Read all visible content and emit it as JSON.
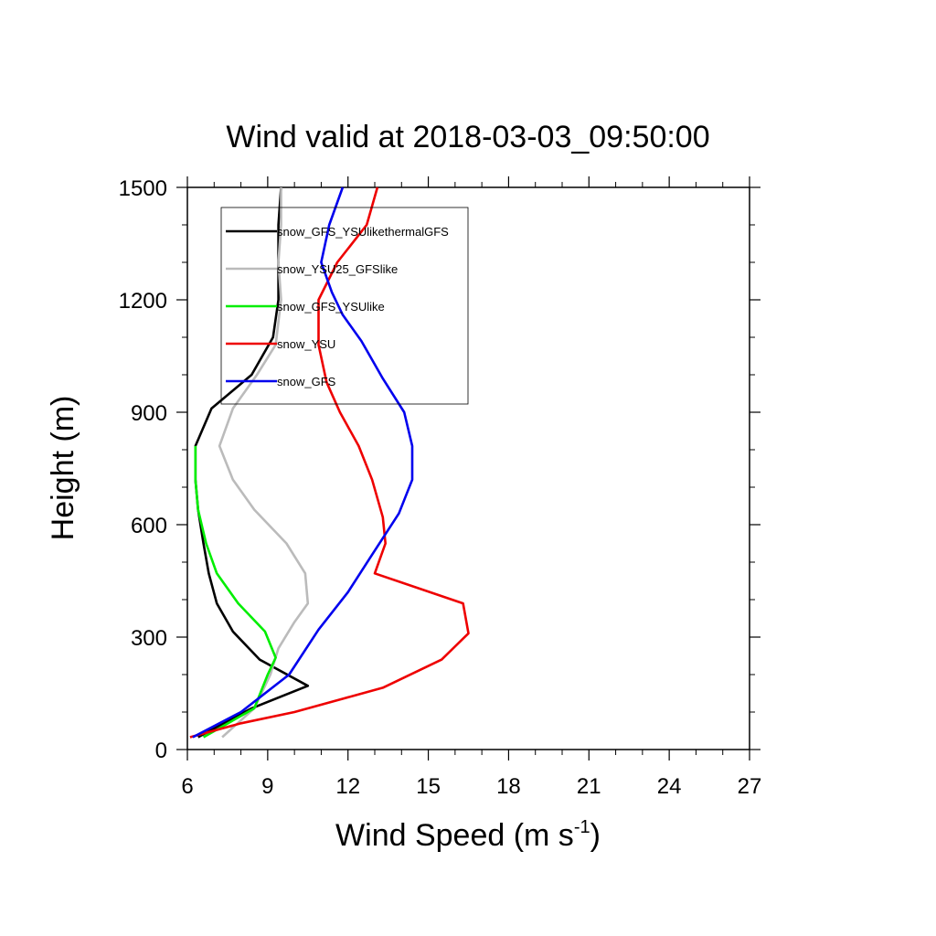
{
  "chart_data": {
    "type": "line",
    "title": "Wind valid at 2018-03-03_09:50:00",
    "xlabel": "Wind Speed (m s",
    "xlabel_sup": "-1",
    "xlabel_end": ")",
    "ylabel": "Height (m)",
    "xlim": [
      6,
      27
    ],
    "ylim": [
      0,
      1500
    ],
    "xticks": [
      6,
      9,
      12,
      15,
      18,
      21,
      24,
      27
    ],
    "yticks": [
      0,
      300,
      600,
      900,
      1200,
      1500
    ],
    "x_tick_labels": [
      "6",
      "9",
      "12",
      "15",
      "18",
      "21",
      "24",
      "27"
    ],
    "y_tick_labels": [
      "0",
      "300",
      "600",
      "900",
      "1200",
      "1500"
    ],
    "grid": false,
    "legend_position": "top-left",
    "series": [
      {
        "name": "snow_GFS_YSUlikethermalGFS",
        "color": "#000000",
        "points": [
          [
            6.4,
            33
          ],
          [
            8.4,
            110
          ],
          [
            10.5,
            170
          ],
          [
            8.7,
            240
          ],
          [
            7.7,
            315
          ],
          [
            7.1,
            390
          ],
          [
            6.8,
            470
          ],
          [
            6.6,
            550
          ],
          [
            6.4,
            640
          ],
          [
            6.3,
            720
          ],
          [
            6.3,
            810
          ],
          [
            6.9,
            910
          ],
          [
            8.4,
            1000
          ],
          [
            9.2,
            1100
          ],
          [
            9.4,
            1200
          ],
          [
            9.4,
            1300
          ],
          [
            9.4,
            1400
          ],
          [
            9.5,
            1500
          ]
        ]
      },
      {
        "name": "snow_YSU25_GFSlike",
        "color": "#bbbbbb",
        "points": [
          [
            7.3,
            33
          ],
          [
            8.5,
            110
          ],
          [
            9.1,
            200
          ],
          [
            9.4,
            270
          ],
          [
            10.0,
            340
          ],
          [
            10.5,
            390
          ],
          [
            10.4,
            470
          ],
          [
            9.7,
            550
          ],
          [
            8.5,
            640
          ],
          [
            7.7,
            720
          ],
          [
            7.2,
            810
          ],
          [
            7.7,
            910
          ],
          [
            8.6,
            1000
          ],
          [
            9.3,
            1080
          ],
          [
            9.5,
            1200
          ],
          [
            9.4,
            1300
          ],
          [
            9.5,
            1400
          ],
          [
            9.5,
            1500
          ]
        ]
      },
      {
        "name": "snow_GFS_YSUlike",
        "color": "#00ee00",
        "points": [
          [
            6.6,
            33
          ],
          [
            8.5,
            110
          ],
          [
            9.0,
            200
          ],
          [
            9.3,
            245
          ],
          [
            8.9,
            315
          ],
          [
            7.9,
            390
          ],
          [
            7.1,
            470
          ],
          [
            6.7,
            550
          ],
          [
            6.4,
            640
          ],
          [
            6.3,
            720
          ],
          [
            6.3,
            810
          ]
        ]
      },
      {
        "name": "snow_YSU",
        "color": "#ee0000",
        "points": [
          [
            6.1,
            33
          ],
          [
            8.0,
            70
          ],
          [
            10.0,
            100
          ],
          [
            13.3,
            165
          ],
          [
            15.5,
            240
          ],
          [
            16.5,
            310
          ],
          [
            16.3,
            390
          ],
          [
            13.0,
            470
          ],
          [
            13.4,
            550
          ],
          [
            13.3,
            620
          ],
          [
            12.9,
            720
          ],
          [
            12.4,
            810
          ],
          [
            11.7,
            900
          ],
          [
            11.2,
            980
          ],
          [
            10.9,
            1080
          ],
          [
            10.9,
            1200
          ],
          [
            11.6,
            1300
          ],
          [
            12.7,
            1400
          ],
          [
            13.1,
            1500
          ]
        ]
      },
      {
        "name": "snow_GFS",
        "color": "#0000ee",
        "points": [
          [
            6.2,
            33
          ],
          [
            8.0,
            100
          ],
          [
            9.8,
            200
          ],
          [
            10.9,
            320
          ],
          [
            12.0,
            420
          ],
          [
            12.9,
            520
          ],
          [
            13.9,
            630
          ],
          [
            14.4,
            720
          ],
          [
            14.4,
            810
          ],
          [
            14.1,
            900
          ],
          [
            13.3,
            990
          ],
          [
            12.5,
            1090
          ],
          [
            11.8,
            1160
          ],
          [
            11.4,
            1220
          ],
          [
            11.0,
            1300
          ],
          [
            11.3,
            1400
          ],
          [
            11.8,
            1500
          ]
        ]
      }
    ]
  }
}
